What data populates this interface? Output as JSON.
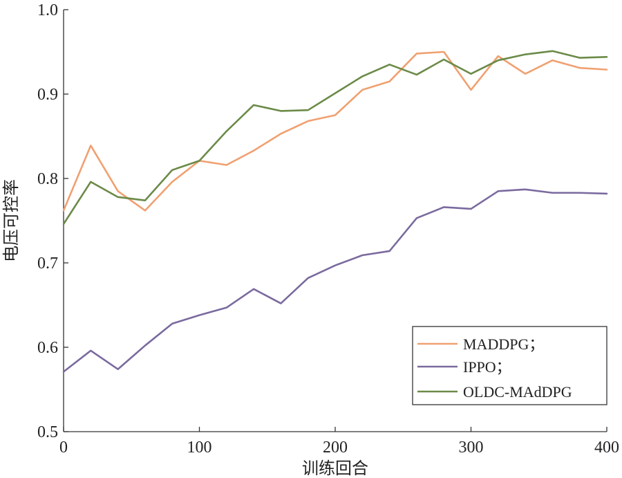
{
  "chart_data": {
    "type": "line",
    "title": "",
    "xlabel": "训练回合",
    "ylabel": "电压可控率",
    "xlim": [
      0,
      400
    ],
    "ylim": [
      0.5,
      1.0
    ],
    "xticks": [
      0,
      100,
      200,
      300,
      400
    ],
    "xtick_labels": [
      "0",
      "100",
      "200",
      "300",
      "400"
    ],
    "yticks": [
      0.5,
      0.6,
      0.7,
      0.8,
      0.9,
      1.0
    ],
    "ytick_labels": [
      "0.5",
      "0.6",
      "0.7",
      "0.8",
      "0.9",
      "1.0"
    ],
    "grid": false,
    "legend_position": "bottom-right",
    "x": [
      0,
      20,
      40,
      60,
      80,
      100,
      120,
      140,
      160,
      180,
      200,
      220,
      240,
      260,
      280,
      300,
      320,
      340,
      360,
      380,
      400
    ],
    "series": [
      {
        "name": "MADDPG；",
        "color": "#f0a070",
        "values": [
          0.762,
          0.839,
          0.785,
          0.762,
          0.796,
          0.821,
          0.816,
          0.833,
          0.853,
          0.868,
          0.875,
          0.905,
          0.915,
          0.948,
          0.95,
          0.905,
          0.945,
          0.924,
          0.94,
          0.931,
          0.929
        ]
      },
      {
        "name": "IPPO；",
        "color": "#7a6a9e",
        "values": [
          0.571,
          0.596,
          0.574,
          0.602,
          0.628,
          0.638,
          0.647,
          0.669,
          0.652,
          0.682,
          0.697,
          0.709,
          0.714,
          0.753,
          0.766,
          0.764,
          0.785,
          0.787,
          0.783,
          0.783,
          0.782
        ]
      },
      {
        "name": "OLDC-MAdDPG",
        "color": "#6b8a47",
        "values": [
          0.746,
          0.796,
          0.778,
          0.774,
          0.81,
          0.821,
          0.856,
          0.887,
          0.88,
          0.881,
          0.901,
          0.921,
          0.935,
          0.923,
          0.941,
          0.924,
          0.94,
          0.947,
          0.951,
          0.943,
          0.944
        ]
      }
    ]
  }
}
